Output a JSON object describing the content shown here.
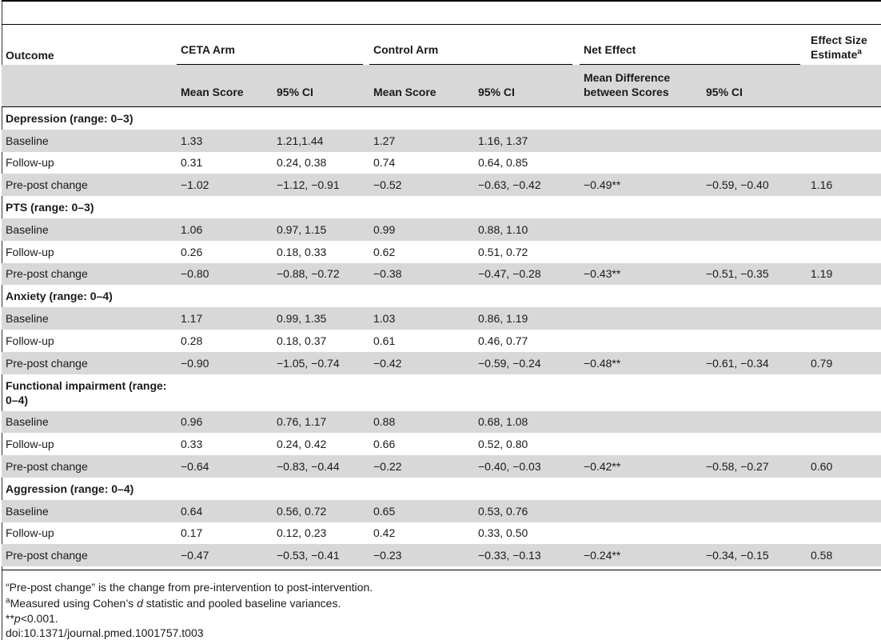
{
  "header": {
    "outcome": "Outcome",
    "ceta_arm": "CETA Arm",
    "control_arm": "Control Arm",
    "net_effect": "Net Effect",
    "effect_size_line1": "Effect Size",
    "effect_size_line2": "Estimate",
    "effect_size_sup": "a"
  },
  "subheader": {
    "ceta_mean": "Mean Score",
    "ceta_ci": "95% CI",
    "control_mean": "Mean Score",
    "control_ci": "95% CI",
    "mean_diff_line1": "Mean Difference",
    "mean_diff_line2": "between Scores",
    "net_ci": "95% CI"
  },
  "sections": [
    {
      "title": "Depression (range: 0–3)",
      "rows": [
        {
          "label": "Baseline",
          "ceta_mean": "1.33",
          "ceta_ci": "1.21,1.44",
          "control_mean": "1.27",
          "control_ci": "1.16, 1.37",
          "mean_diff": "",
          "net_ci": "",
          "effect": ""
        },
        {
          "label": "Follow-up",
          "ceta_mean": "0.31",
          "ceta_ci": "0.24, 0.38",
          "control_mean": "0.74",
          "control_ci": "0.64, 0.85",
          "mean_diff": "",
          "net_ci": "",
          "effect": ""
        },
        {
          "label": "Pre-post change",
          "ceta_mean": "−1.02",
          "ceta_ci": "−1.12, −0.91",
          "control_mean": "−0.52",
          "control_ci": "−0.63, −0.42",
          "mean_diff": "−0.49**",
          "net_ci": "−0.59, −0.40",
          "effect": "1.16"
        }
      ]
    },
    {
      "title": "PTS (range: 0–3)",
      "rows": [
        {
          "label": "Baseline",
          "ceta_mean": "1.06",
          "ceta_ci": "0.97, 1.15",
          "control_mean": "0.99",
          "control_ci": "0.88, 1.10",
          "mean_diff": "",
          "net_ci": "",
          "effect": ""
        },
        {
          "label": "Follow-up",
          "ceta_mean": "0.26",
          "ceta_ci": "0.18, 0.33",
          "control_mean": "0.62",
          "control_ci": "0.51, 0.72",
          "mean_diff": "",
          "net_ci": "",
          "effect": ""
        },
        {
          "label": "Pre-post change",
          "ceta_mean": "−0.80",
          "ceta_ci": "−0.88, −0.72",
          "control_mean": "−0.38",
          "control_ci": "−0.47, −0.28",
          "mean_diff": "−0.43**",
          "net_ci": "−0.51, −0.35",
          "effect": "1.19"
        }
      ]
    },
    {
      "title": "Anxiety (range: 0–4)",
      "rows": [
        {
          "label": "Baseline",
          "ceta_mean": "1.17",
          "ceta_ci": "0.99, 1.35",
          "control_mean": "1.03",
          "control_ci": "0.86, 1.19",
          "mean_diff": "",
          "net_ci": "",
          "effect": ""
        },
        {
          "label": "Follow-up",
          "ceta_mean": "0.28",
          "ceta_ci": "0.18, 0.37",
          "control_mean": "0.61",
          "control_ci": "0.46, 0.77",
          "mean_diff": "",
          "net_ci": "",
          "effect": ""
        },
        {
          "label": "Pre-post change",
          "ceta_mean": "−0.90",
          "ceta_ci": "−1.05, −0.74",
          "control_mean": "−0.42",
          "control_ci": "−0.59, −0.24",
          "mean_diff": "−0.48**",
          "net_ci": "−0.61, −0.34",
          "effect": "0.79"
        }
      ]
    },
    {
      "title": "Functional impairment (range: 0–4)",
      "tall": true,
      "rows": [
        {
          "label": "Baseline",
          "ceta_mean": "0.96",
          "ceta_ci": "0.76, 1.17",
          "control_mean": "0.88",
          "control_ci": "0.68, 1.08",
          "mean_diff": "",
          "net_ci": "",
          "effect": ""
        },
        {
          "label": "Follow-up",
          "ceta_mean": "0.33",
          "ceta_ci": "0.24, 0.42",
          "control_mean": "0.66",
          "control_ci": "0.52, 0.80",
          "mean_diff": "",
          "net_ci": "",
          "effect": ""
        },
        {
          "label": "Pre-post change",
          "ceta_mean": "−0.64",
          "ceta_ci": "−0.83, −0.44",
          "control_mean": "−0.22",
          "control_ci": "−0.40, −0.03",
          "mean_diff": "−0.42**",
          "net_ci": "−0.58, −0.27",
          "effect": "0.60"
        }
      ]
    },
    {
      "title": "Aggression (range: 0–4)",
      "rows": [
        {
          "label": "Baseline",
          "ceta_mean": "0.64",
          "ceta_ci": "0.56, 0.72",
          "control_mean": "0.65",
          "control_ci": "0.53, 0.76",
          "mean_diff": "",
          "net_ci": "",
          "effect": ""
        },
        {
          "label": "Follow-up",
          "ceta_mean": "0.17",
          "ceta_ci": "0.12, 0.23",
          "control_mean": "0.42",
          "control_ci": "0.33, 0.50",
          "mean_diff": "",
          "net_ci": "",
          "effect": ""
        },
        {
          "label": "Pre-post change",
          "ceta_mean": "−0.47",
          "ceta_ci": "−0.53, −0.41",
          "control_mean": "−0.23",
          "control_ci": "−0.33, −0.13",
          "mean_diff": "−0.24**",
          "net_ci": "−0.34, −0.15",
          "effect": "0.58"
        }
      ]
    }
  ],
  "footnotes": {
    "line1": "“Pre-post change” is the change from pre-intervention to post-intervention.",
    "line2_sup": "a",
    "line2_pre": "Measured using Cohen’s ",
    "line2_italic": "d",
    "line2_post": " statistic and pooled baseline variances.",
    "line3_stars": "**",
    "line3_italic": "p",
    "line3_rest": "<0.001.",
    "line4": "doi:10.1371/journal.pmed.1001757.t003"
  }
}
